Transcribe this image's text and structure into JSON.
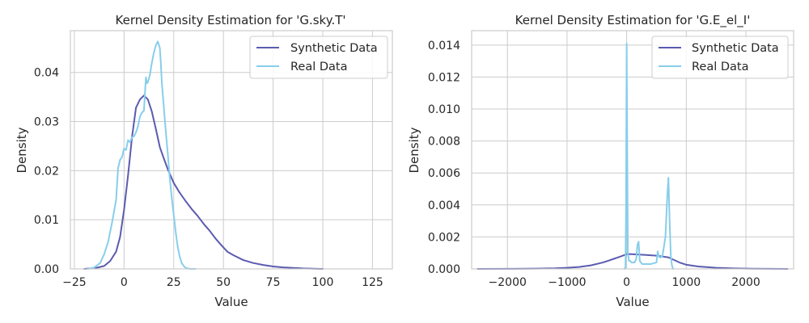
{
  "figure": {
    "background": "#ffffff"
  },
  "chart_data": [
    {
      "type": "line",
      "title": "Kernel Density Estimation for 'G.sky.T'",
      "xlabel": "Value",
      "ylabel": "Density",
      "xlim": [
        -27,
        135
      ],
      "ylim": [
        0,
        0.0485
      ],
      "xticks": [
        -25,
        0,
        25,
        50,
        75,
        100,
        125
      ],
      "xtick_labels": [
        "−25",
        "0",
        "25",
        "50",
        "75",
        "100",
        "125"
      ],
      "yticks": [
        0,
        0.01,
        0.02,
        0.03,
        0.04
      ],
      "ytick_labels": [
        "0.00",
        "0.01",
        "0.02",
        "0.03",
        "0.04"
      ],
      "grid": true,
      "legend": {
        "placement": "top-right"
      },
      "series": [
        {
          "name": "Synthetic Data",
          "color": "#5b5bb0",
          "x": [
            -20,
            -14,
            -10,
            -7,
            -4,
            -2,
            0,
            2,
            4,
            6,
            8,
            10,
            12,
            14,
            16,
            18,
            20,
            22,
            25,
            28,
            31,
            34,
            37,
            40,
            43,
            46,
            49,
            52,
            55,
            60,
            65,
            70,
            75,
            80,
            85,
            90,
            95,
            100
          ],
          "y": [
            0,
            0.0002,
            0.0006,
            0.0016,
            0.0035,
            0.0065,
            0.012,
            0.019,
            0.0268,
            0.0328,
            0.0345,
            0.0353,
            0.0345,
            0.032,
            0.0285,
            0.0248,
            0.0225,
            0.0203,
            0.0175,
            0.0155,
            0.0138,
            0.0122,
            0.0108,
            0.0092,
            0.0078,
            0.0062,
            0.0048,
            0.0035,
            0.0028,
            0.0018,
            0.0012,
            0.0008,
            0.0005,
            0.0003,
            0.0002,
            0.0001,
            5e-05,
            0
          ]
        },
        {
          "name": "Real Data",
          "color": "#87ceeb",
          "x": [
            -18,
            -15,
            -12,
            -10,
            -8,
            -6,
            -4,
            -3,
            -2,
            -1,
            0,
            1,
            2,
            3,
            4,
            5,
            6,
            7,
            8,
            9,
            10,
            11,
            11.5,
            12,
            13,
            14,
            15,
            16,
            17,
            18,
            18.5,
            19,
            20,
            21,
            22,
            23,
            24,
            25,
            26,
            27,
            28,
            29,
            30,
            31,
            32,
            33,
            34,
            36
          ],
          "y": [
            0,
            0.0003,
            0.0012,
            0.003,
            0.0055,
            0.0095,
            0.014,
            0.0205,
            0.0222,
            0.0228,
            0.0245,
            0.0242,
            0.0262,
            0.0258,
            0.0268,
            0.027,
            0.0278,
            0.029,
            0.031,
            0.0318,
            0.0322,
            0.039,
            0.0378,
            0.038,
            0.0395,
            0.042,
            0.044,
            0.0455,
            0.0463,
            0.045,
            0.042,
            0.038,
            0.033,
            0.028,
            0.0235,
            0.0185,
            0.0145,
            0.011,
            0.0075,
            0.0045,
            0.0025,
            0.0012,
            0.0006,
            0.0002,
            0.0001,
            0,
            0,
            0
          ]
        }
      ]
    },
    {
      "type": "line",
      "title": "Kernel Density Estimation for 'G.E_el_I'",
      "xlabel": "Value",
      "ylabel": "Density",
      "xlim": [
        -2600,
        2800
      ],
      "ylim": [
        0,
        0.0149
      ],
      "xticks": [
        -2000,
        -1000,
        0,
        1000,
        2000
      ],
      "xtick_labels": [
        "−2000",
        "−1000",
        "0",
        "1000",
        "2000"
      ],
      "yticks": [
        0,
        0.002,
        0.004,
        0.006,
        0.008,
        0.01,
        0.012,
        0.014
      ],
      "ytick_labels": [
        "0.000",
        "0.002",
        "0.004",
        "0.006",
        "0.008",
        "0.010",
        "0.012",
        "0.014"
      ],
      "grid": true,
      "legend": {
        "placement": "top-right"
      },
      "series": [
        {
          "name": "Synthetic Data",
          "color": "#5b5bb0",
          "x": [
            -2500,
            -2000,
            -1500,
            -1200,
            -1000,
            -800,
            -600,
            -400,
            -300,
            -200,
            -100,
            0,
            50,
            150,
            300,
            500,
            700,
            800,
            900,
            1000,
            1200,
            1500,
            1800,
            2100,
            2400,
            2700
          ],
          "y": [
            0,
            5e-06,
            2e-05,
            4e-05,
            7e-05,
            0.00012,
            0.00022,
            0.0004,
            0.00052,
            0.00065,
            0.00078,
            0.00092,
            0.00093,
            0.00091,
            0.00088,
            0.00083,
            0.00072,
            0.00055,
            0.00038,
            0.00026,
            0.00015,
            7e-05,
            3e-05,
            1e-05,
            5e-06,
            0
          ]
        },
        {
          "name": "Real Data",
          "color": "#87ceeb",
          "x": [
            -40,
            -20,
            -10,
            0,
            10,
            20,
            40,
            60,
            80,
            100,
            130,
            160,
            180,
            200,
            220,
            260,
            300,
            400,
            500,
            520,
            540,
            560,
            600,
            650,
            680,
            700,
            720,
            740,
            760,
            780
          ],
          "y": [
            0,
            0.0001,
            0.004,
            0.0141,
            0.007,
            0.001,
            0.0005,
            0.0005,
            0.0004,
            0.0004,
            0.0004,
            0.0006,
            0.0015,
            0.0017,
            0.0005,
            0.0003,
            0.0003,
            0.0003,
            0.0004,
            0.0011,
            0.0008,
            0.0007,
            0.0008,
            0.002,
            0.0045,
            0.0057,
            0.003,
            0.0008,
            0.0002,
            0
          ]
        }
      ]
    }
  ]
}
